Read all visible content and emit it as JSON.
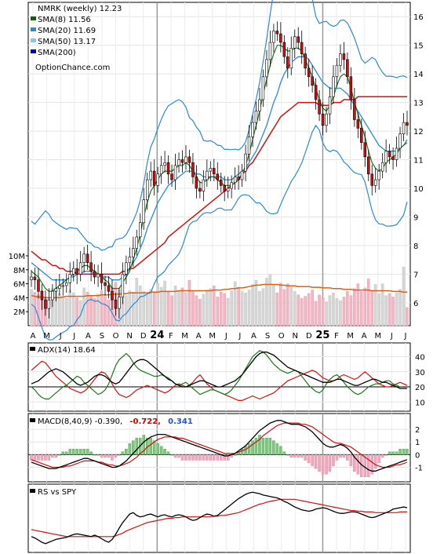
{
  "chart_data": {
    "type": "line",
    "title": "NMRK (weekly) 12.23",
    "legend": [
      {
        "label": "SMA(8) 11.56",
        "color": "#006400"
      },
      {
        "label": "SMA(20) 11.69",
        "color": "#2a8ad8"
      },
      {
        "label": "SMA(50) 13.17",
        "color": "#7fc8f0"
      },
      {
        "label": "SMA(200)",
        "color": "#0000cc"
      }
    ],
    "watermark": "OptionChance.com",
    "x_labels": [
      "A",
      "M",
      "J",
      "J",
      "A",
      "S",
      "O",
      "N",
      "D",
      "24",
      "F",
      "M",
      "A",
      "M",
      "J",
      "J",
      "A",
      "S",
      "O",
      "N",
      "D",
      "25",
      "F",
      "M",
      "A",
      "M",
      "J",
      "J"
    ],
    "price_axis": {
      "ticks": [
        6,
        7,
        8,
        9,
        10,
        11,
        12,
        13,
        14,
        15,
        16
      ],
      "range": [
        5.2,
        16.5
      ]
    },
    "volume_axis": {
      "ticks": [
        "2M",
        "4M",
        "6M",
        "8M",
        "10M"
      ]
    },
    "price_series": [
      6.9,
      6.8,
      6.4,
      6.1,
      5.8,
      6.1,
      6.4,
      6.5,
      6.6,
      6.6,
      6.7,
      7.0,
      7.2,
      7.0,
      7.4,
      7.7,
      7.4,
      7.1,
      6.9,
      7.0,
      6.7,
      6.6,
      6.4,
      6.1,
      5.8,
      6.2,
      7.0,
      7.4,
      7.6,
      7.9,
      8.3,
      8.8,
      9.6,
      10.3,
      10.6,
      10.1,
      10.5,
      10.8,
      10.9,
      10.5,
      10.3,
      10.8,
      11.0,
      10.9,
      11.1,
      10.9,
      10.4,
      10.0,
      9.9,
      10.3,
      10.6,
      10.7,
      10.5,
      10.3,
      10.1,
      9.9,
      10.0,
      10.2,
      10.4,
      10.3,
      10.6,
      11.2,
      11.8,
      12.3,
      12.7,
      13.1,
      13.9,
      14.5,
      15.1,
      15.5,
      15.4,
      15.1,
      14.6,
      14.2,
      14.9,
      15.3,
      15.1,
      14.7,
      14.2,
      13.9,
      13.6,
      13.1,
      12.6,
      12.2,
      12.6,
      13.2,
      13.9,
      14.3,
      14.7,
      14.5,
      13.9,
      13.1,
      12.4,
      12.1,
      11.6,
      11.1,
      10.5,
      10.1,
      10.3,
      10.6,
      10.9,
      11.3,
      11.1,
      11.0,
      11.4,
      11.9,
      12.3,
      12.2
    ],
    "sma_8": [
      7.1,
      7.0,
      6.9,
      6.7,
      6.5,
      6.4,
      6.4,
      6.5,
      6.6,
      6.7,
      6.8,
      6.9,
      7.0,
      7.1,
      7.2,
      7.3,
      7.3,
      7.2,
      7.1,
      7.0,
      6.9,
      6.8,
      6.7,
      6.5,
      6.5,
      6.5,
      6.7,
      6.9,
      7.1,
      7.5,
      7.9,
      8.4,
      9.0,
      9.5,
      9.9,
      10.1,
      10.3,
      10.5,
      10.6,
      10.6,
      10.6,
      10.7,
      10.8,
      10.8,
      10.9,
      10.8,
      10.6,
      10.4,
      10.2,
      10.2,
      10.3,
      10.4,
      10.4,
      10.3,
      10.2,
      10.1,
      10.1,
      10.1,
      10.2,
      10.3,
      10.5,
      10.8,
      11.2,
      11.7,
      12.2,
      12.7,
      13.3,
      13.8,
      14.3,
      14.7,
      15.0,
      15.0,
      14.9,
      14.8,
      14.8,
      14.9,
      14.9,
      14.8,
      14.5,
      14.2,
      13.9,
      13.5,
      13.1,
      12.8,
      12.7,
      12.9,
      13.2,
      13.6,
      13.9,
      14.0,
      13.9,
      13.5,
      13.0,
      12.6,
      12.2,
      11.8,
      11.3,
      10.9,
      10.7,
      10.6,
      10.7,
      10.9,
      11.0,
      11.1,
      11.2,
      11.4,
      11.5,
      11.6
    ],
    "sma_20": [
      7.4,
      7.3,
      7.2,
      7.1,
      7.0,
      6.9,
      6.8,
      6.8,
      6.8,
      6.8,
      6.8,
      6.9,
      6.9,
      7.0,
      7.0,
      7.1,
      7.1,
      7.1,
      7.0,
      7.0,
      6.9,
      6.9,
      6.9,
      6.8,
      6.8,
      6.8,
      6.9,
      7.0,
      7.2,
      7.4,
      7.6,
      7.9,
      8.2,
      8.6,
      8.9,
      9.2,
      9.5,
      9.7,
      9.9,
      10.1,
      10.2,
      10.3,
      10.4,
      10.5,
      10.6,
      10.6,
      10.6,
      10.5,
      10.5,
      10.4,
      10.4,
      10.4,
      10.4,
      10.4,
      10.4,
      10.3,
      10.3,
      10.3,
      10.4,
      10.5,
      10.6,
      10.7,
      10.9,
      11.1,
      11.3,
      11.6,
      11.9,
      12.2,
      12.6,
      13.0,
      13.3,
      13.7,
      14.0,
      14.2,
      14.4,
      14.5,
      14.6,
      14.6,
      14.6,
      14.5,
      14.3,
      14.1,
      13.9,
      13.7,
      13.6,
      13.5,
      13.5,
      13.5,
      13.5,
      13.4,
      13.3,
      13.1,
      12.9,
      12.7,
      12.5,
      12.3,
      12.1,
      11.9,
      11.7,
      11.5,
      11.4,
      11.3,
      11.3,
      11.3,
      11.3,
      11.4,
      11.5,
      11.7
    ],
    "sma_50": [
      7.8,
      7.7,
      7.6,
      7.5,
      7.5,
      7.4,
      7.3,
      7.3,
      7.2,
      7.2,
      7.1,
      7.1,
      7.1,
      7.0,
      7.0,
      7.0,
      7.0,
      7.0,
      7.0,
      7.0,
      7.0,
      7.0,
      7.0,
      7.0,
      7.0,
      7.0,
      7.1,
      7.1,
      7.2,
      7.2,
      7.3,
      7.4,
      7.5,
      7.6,
      7.7,
      7.8,
      7.9,
      8.0,
      8.1,
      8.3,
      8.4,
      8.5,
      8.6,
      8.7,
      8.8,
      8.9,
      9.0,
      9.1,
      9.2,
      9.3,
      9.4,
      9.5,
      9.6,
      9.7,
      9.8,
      9.9,
      10.0,
      10.1,
      10.2,
      10.3,
      10.5,
      10.6,
      10.8,
      10.9,
      11.1,
      11.3,
      11.5,
      11.7,
      11.9,
      12.1,
      12.3,
      12.5,
      12.6,
      12.7,
      12.8,
      12.9,
      13.0,
      13.0,
      13.0,
      13.0,
      13.0,
      13.0,
      12.9,
      12.9,
      12.9,
      12.9,
      13.0,
      13.0,
      13.0,
      13.1,
      13.1,
      13.1,
      13.1,
      13.2,
      13.2,
      13.2,
      13.2,
      13.2,
      13.2,
      13.2,
      13.2,
      13.2,
      13.2,
      13.2,
      13.2,
      13.2,
      13.2,
      13.2
    ],
    "volume_m": [
      5.2,
      4.8,
      4.4,
      5.0,
      4.1,
      3.8,
      5.3,
      4.9,
      4.6,
      4.2,
      3.9,
      5.1,
      4.7,
      4.0,
      3.6,
      5.4,
      4.8,
      4.3,
      3.9,
      4.5,
      5.0,
      4.2,
      3.7,
      5.5,
      6.2,
      5.1,
      4.6,
      4.3,
      5.0,
      4.8,
      6.8,
      5.7,
      4.9,
      4.4,
      5.2,
      4.7,
      6.0,
      5.5,
      6.4,
      4.8,
      4.3,
      5.7,
      5.0,
      5.4,
      4.7,
      6.5,
      4.9,
      4.3,
      3.8,
      4.5,
      5.1,
      5.3,
      5.7,
      4.1,
      4.8,
      4.6,
      3.9,
      5.0,
      6.3,
      5.5,
      4.9,
      4.7,
      5.1,
      5.9,
      6.5,
      4.9,
      5.3,
      6.8,
      7.3,
      5.8,
      4.7,
      6.1,
      5.2,
      6.0,
      5.5,
      4.9,
      4.4,
      3.9,
      4.2,
      4.6,
      5.1,
      3.5,
      4.4,
      4.0,
      3.4,
      4.3,
      4.7,
      3.9,
      3.6,
      4.1,
      4.9,
      4.3,
      5.3,
      6.0,
      4.9,
      5.4,
      6.7,
      5.0,
      5.9,
      4.6,
      6.0,
      4.3,
      4.6,
      4.1,
      4.7,
      5.2,
      8.4,
      2.6
    ],
    "volume_avg_m": [
      4.3,
      4.2,
      4.1,
      4.1,
      4.0,
      4.0,
      4.0,
      4.0,
      4.0,
      4.1,
      4.2,
      4.2,
      4.2,
      4.2,
      4.2,
      4.2,
      4.3,
      4.3,
      4.3,
      4.3,
      4.4,
      4.4,
      4.4,
      4.5,
      4.5,
      4.5,
      4.6,
      4.6,
      4.7,
      4.7,
      4.7,
      4.7,
      4.7,
      4.7,
      4.8,
      4.8,
      4.8,
      4.9,
      4.9,
      4.9,
      4.9,
      4.9,
      5.0,
      5.0,
      5.0,
      5.0,
      5.0,
      5.0,
      5.0,
      5.0,
      5.0,
      5.0,
      5.1,
      5.1,
      5.1,
      5.2,
      5.2,
      5.3,
      5.3,
      5.4,
      5.4,
      5.5,
      5.6,
      5.7,
      5.8,
      5.8,
      5.9,
      5.9,
      5.9,
      5.9,
      5.9,
      5.8,
      5.8,
      5.7,
      5.7,
      5.7,
      5.6,
      5.6,
      5.6,
      5.6,
      5.5,
      5.5,
      5.5,
      5.4,
      5.4,
      5.4,
      5.3,
      5.3,
      5.3,
      5.2,
      5.2,
      5.2,
      5.1,
      5.1,
      5.1,
      5.1,
      5.1,
      5.0,
      5.0,
      5.0,
      5.0,
      5.0,
      5.0,
      4.9,
      4.9,
      4.9,
      4.8,
      4.8
    ],
    "adx_panel": {
      "label": "ADX(14) 18.64",
      "ticks": [
        10,
        20,
        30,
        40
      ],
      "adx": [
        22,
        23,
        24,
        26,
        28,
        30,
        31,
        32,
        31,
        30,
        28,
        26,
        24,
        22,
        21,
        22,
        23,
        25,
        27,
        28,
        28,
        27,
        25,
        23,
        22,
        23,
        26,
        29,
        32,
        35,
        37,
        38,
        38,
        37,
        35,
        33,
        31,
        29,
        27,
        25,
        24,
        22,
        21,
        20,
        20,
        21,
        22,
        23,
        24,
        24,
        23,
        22,
        21,
        20,
        20,
        21,
        22,
        23,
        24,
        26,
        28,
        31,
        34,
        37,
        40,
        42,
        43,
        43,
        42,
        41,
        39,
        37,
        35,
        33,
        32,
        31,
        30,
        29,
        28,
        27,
        26,
        25,
        24,
        23,
        23,
        23,
        24,
        25,
        25,
        24,
        23,
        22,
        21,
        21,
        22,
        23,
        24,
        25,
        25,
        24,
        23,
        23,
        22,
        21,
        20,
        19,
        19,
        19
      ],
      "plus_di": [
        20,
        18,
        15,
        13,
        12,
        12,
        14,
        16,
        18,
        20,
        21,
        23,
        25,
        27,
        26,
        23,
        21,
        19,
        17,
        15,
        16,
        18,
        22,
        28,
        34,
        38,
        40,
        42,
        40,
        36,
        33,
        31,
        30,
        29,
        28,
        27,
        27,
        28,
        27,
        26,
        24,
        22,
        21,
        22,
        23,
        21,
        19,
        17,
        15,
        16,
        17,
        18,
        18,
        17,
        16,
        15,
        16,
        18,
        21,
        24,
        28,
        32,
        36,
        40,
        42,
        44,
        43,
        41,
        38,
        35,
        33,
        31,
        30,
        29,
        30,
        31,
        30,
        27,
        24,
        21,
        19,
        17,
        16,
        18,
        22,
        25,
        27,
        28,
        26,
        23,
        20,
        18,
        16,
        15,
        16,
        18,
        20,
        21,
        22,
        22,
        23,
        24,
        24,
        22,
        21,
        20
      ],
      "minus_di": [
        31,
        33,
        35,
        37,
        36,
        33,
        30,
        27,
        25,
        23,
        21,
        19,
        18,
        17,
        16,
        17,
        19,
        22,
        25,
        28,
        30,
        29,
        26,
        22,
        18,
        15,
        14,
        13,
        14,
        16,
        18,
        19,
        20,
        21,
        20,
        19,
        18,
        17,
        16,
        17,
        19,
        21,
        22,
        21,
        20,
        21,
        23,
        26,
        28,
        25,
        22,
        20,
        18,
        17,
        16,
        15,
        14,
        13,
        12,
        11,
        11,
        12,
        13,
        14,
        13,
        12,
        13,
        14,
        15,
        16,
        18,
        20,
        22,
        24,
        25,
        26,
        27,
        28,
        29,
        30,
        31,
        30,
        28,
        26,
        25,
        24,
        24,
        25,
        27,
        28,
        27,
        26,
        25,
        26,
        28,
        30,
        28,
        26,
        24,
        22,
        21,
        20,
        20,
        21,
        22,
        23,
        22,
        21
      ]
    },
    "macd_panel": {
      "label": "MACD(8,40,9) -0.390,",
      "values_printed": [
        "-0.722,",
        "0.341"
      ],
      "value_colors": [
        "#cc0000",
        "#2255cc"
      ],
      "ticks": [
        -1,
        0,
        1,
        2
      ],
      "macd": [
        -0.6,
        -0.7,
        -0.8,
        -0.9,
        -1.0,
        -1.1,
        -1.1,
        -1.1,
        -1.0,
        -0.9,
        -0.8,
        -0.7,
        -0.6,
        -0.5,
        -0.4,
        -0.3,
        -0.3,
        -0.4,
        -0.5,
        -0.6,
        -0.7,
        -0.8,
        -0.9,
        -1.0,
        -1.0,
        -0.9,
        -0.7,
        -0.5,
        -0.2,
        0.1,
        0.4,
        0.7,
        1.0,
        1.2,
        1.4,
        1.5,
        1.6,
        1.6,
        1.6,
        1.5,
        1.4,
        1.3,
        1.2,
        1.1,
        1.0,
        0.9,
        0.8,
        0.7,
        0.6,
        0.5,
        0.4,
        0.3,
        0.2,
        0.1,
        0.0,
        -0.1,
        -0.1,
        0.0,
        0.1,
        0.3,
        0.5,
        0.7,
        1.0,
        1.3,
        1.6,
        1.9,
        2.1,
        2.3,
        2.5,
        2.6,
        2.7,
        2.7,
        2.6,
        2.5,
        2.4,
        2.4,
        2.4,
        2.3,
        2.2,
        2.0,
        1.8,
        1.5,
        1.2,
        0.9,
        0.7,
        0.6,
        0.6,
        0.7,
        0.8,
        0.7,
        0.5,
        0.2,
        -0.2,
        -0.5,
        -0.8,
        -1.0,
        -1.2,
        -1.3,
        -1.3,
        -1.2,
        -1.1,
        -1.0,
        -0.9,
        -0.8,
        -0.7,
        -0.6,
        -0.5,
        -0.4
      ],
      "signal": [
        -0.4,
        -0.5,
        -0.6,
        -0.7,
        -0.8,
        -0.9,
        -1.0,
        -1.0,
        -1.0,
        -1.0,
        -0.9,
        -0.9,
        -0.8,
        -0.7,
        -0.6,
        -0.5,
        -0.5,
        -0.5,
        -0.5,
        -0.6,
        -0.6,
        -0.7,
        -0.8,
        -0.8,
        -0.9,
        -0.9,
        -0.8,
        -0.7,
        -0.6,
        -0.4,
        -0.2,
        0.1,
        0.3,
        0.6,
        0.8,
        1.0,
        1.2,
        1.3,
        1.4,
        1.4,
        1.4,
        1.4,
        1.3,
        1.3,
        1.2,
        1.1,
        1.0,
        0.9,
        0.8,
        0.7,
        0.6,
        0.5,
        0.4,
        0.3,
        0.2,
        0.1,
        0.1,
        0.1,
        0.1,
        0.2,
        0.3,
        0.4,
        0.6,
        0.8,
        1.0,
        1.2,
        1.5,
        1.7,
        1.9,
        2.1,
        2.3,
        2.4,
        2.5,
        2.5,
        2.5,
        2.5,
        2.5,
        2.4,
        2.4,
        2.3,
        2.2,
        2.0,
        1.8,
        1.6,
        1.4,
        1.2,
        1.0,
        0.9,
        0.9,
        0.8,
        0.7,
        0.6,
        0.4,
        0.2,
        0.0,
        -0.2,
        -0.4,
        -0.6,
        -0.8,
        -0.9,
        -1.0,
        -1.0,
        -1.0,
        -0.9,
        -0.8,
        -0.8,
        -0.7,
        -0.6
      ]
    },
    "rs_panel": {
      "label": "RS vs SPY",
      "rs": [
        0.3,
        0.28,
        0.25,
        0.22,
        0.2,
        0.22,
        0.24,
        0.26,
        0.27,
        0.28,
        0.29,
        0.31,
        0.33,
        0.34,
        0.33,
        0.32,
        0.31,
        0.3,
        0.32,
        0.3,
        0.27,
        0.24,
        0.22,
        0.26,
        0.33,
        0.42,
        0.5,
        0.56,
        0.62,
        0.64,
        0.6,
        0.58,
        0.59,
        0.61,
        0.62,
        0.6,
        0.58,
        0.6,
        0.61,
        0.59,
        0.58,
        0.6,
        0.61,
        0.6,
        0.58,
        0.55,
        0.53,
        0.54,
        0.57,
        0.6,
        0.62,
        0.61,
        0.59,
        0.6,
        0.64,
        0.68,
        0.72,
        0.76,
        0.8,
        0.84,
        0.87,
        0.9,
        0.92,
        0.93,
        0.92,
        0.91,
        0.89,
        0.88,
        0.87,
        0.86,
        0.85,
        0.83,
        0.8,
        0.78,
        0.75,
        0.72,
        0.7,
        0.68,
        0.67,
        0.66,
        0.67,
        0.69,
        0.7,
        0.71,
        0.7,
        0.68,
        0.66,
        0.64,
        0.63,
        0.63,
        0.64,
        0.65,
        0.65,
        0.64,
        0.62,
        0.6,
        0.58,
        0.57,
        0.58,
        0.6,
        0.62,
        0.64,
        0.66,
        0.69,
        0.7,
        0.71,
        0.72,
        0.71
      ],
      "ma": [
        0.4,
        0.39,
        0.38,
        0.37,
        0.36,
        0.35,
        0.34,
        0.33,
        0.32,
        0.31,
        0.3,
        0.3,
        0.3,
        0.3,
        0.3,
        0.3,
        0.3,
        0.3,
        0.3,
        0.3,
        0.3,
        0.3,
        0.3,
        0.3,
        0.31,
        0.33,
        0.35,
        0.38,
        0.4,
        0.42,
        0.44,
        0.46,
        0.48,
        0.5,
        0.51,
        0.52,
        0.53,
        0.54,
        0.55,
        0.56,
        0.56,
        0.57,
        0.57,
        0.58,
        0.58,
        0.58,
        0.58,
        0.58,
        0.58,
        0.58,
        0.58,
        0.58,
        0.59,
        0.59,
        0.6,
        0.6,
        0.61,
        0.62,
        0.63,
        0.64,
        0.66,
        0.68,
        0.7,
        0.72,
        0.74,
        0.76,
        0.77,
        0.79,
        0.8,
        0.81,
        0.82,
        0.83,
        0.83,
        0.83,
        0.83,
        0.83,
        0.82,
        0.81,
        0.8,
        0.79,
        0.78,
        0.77,
        0.76,
        0.75,
        0.74,
        0.73,
        0.72,
        0.71,
        0.7,
        0.69,
        0.68,
        0.67,
        0.67,
        0.66,
        0.66,
        0.65,
        0.65,
        0.65,
        0.64,
        0.64,
        0.64,
        0.64,
        0.64,
        0.64,
        0.64,
        0.65,
        0.65,
        0.65
      ]
    }
  }
}
